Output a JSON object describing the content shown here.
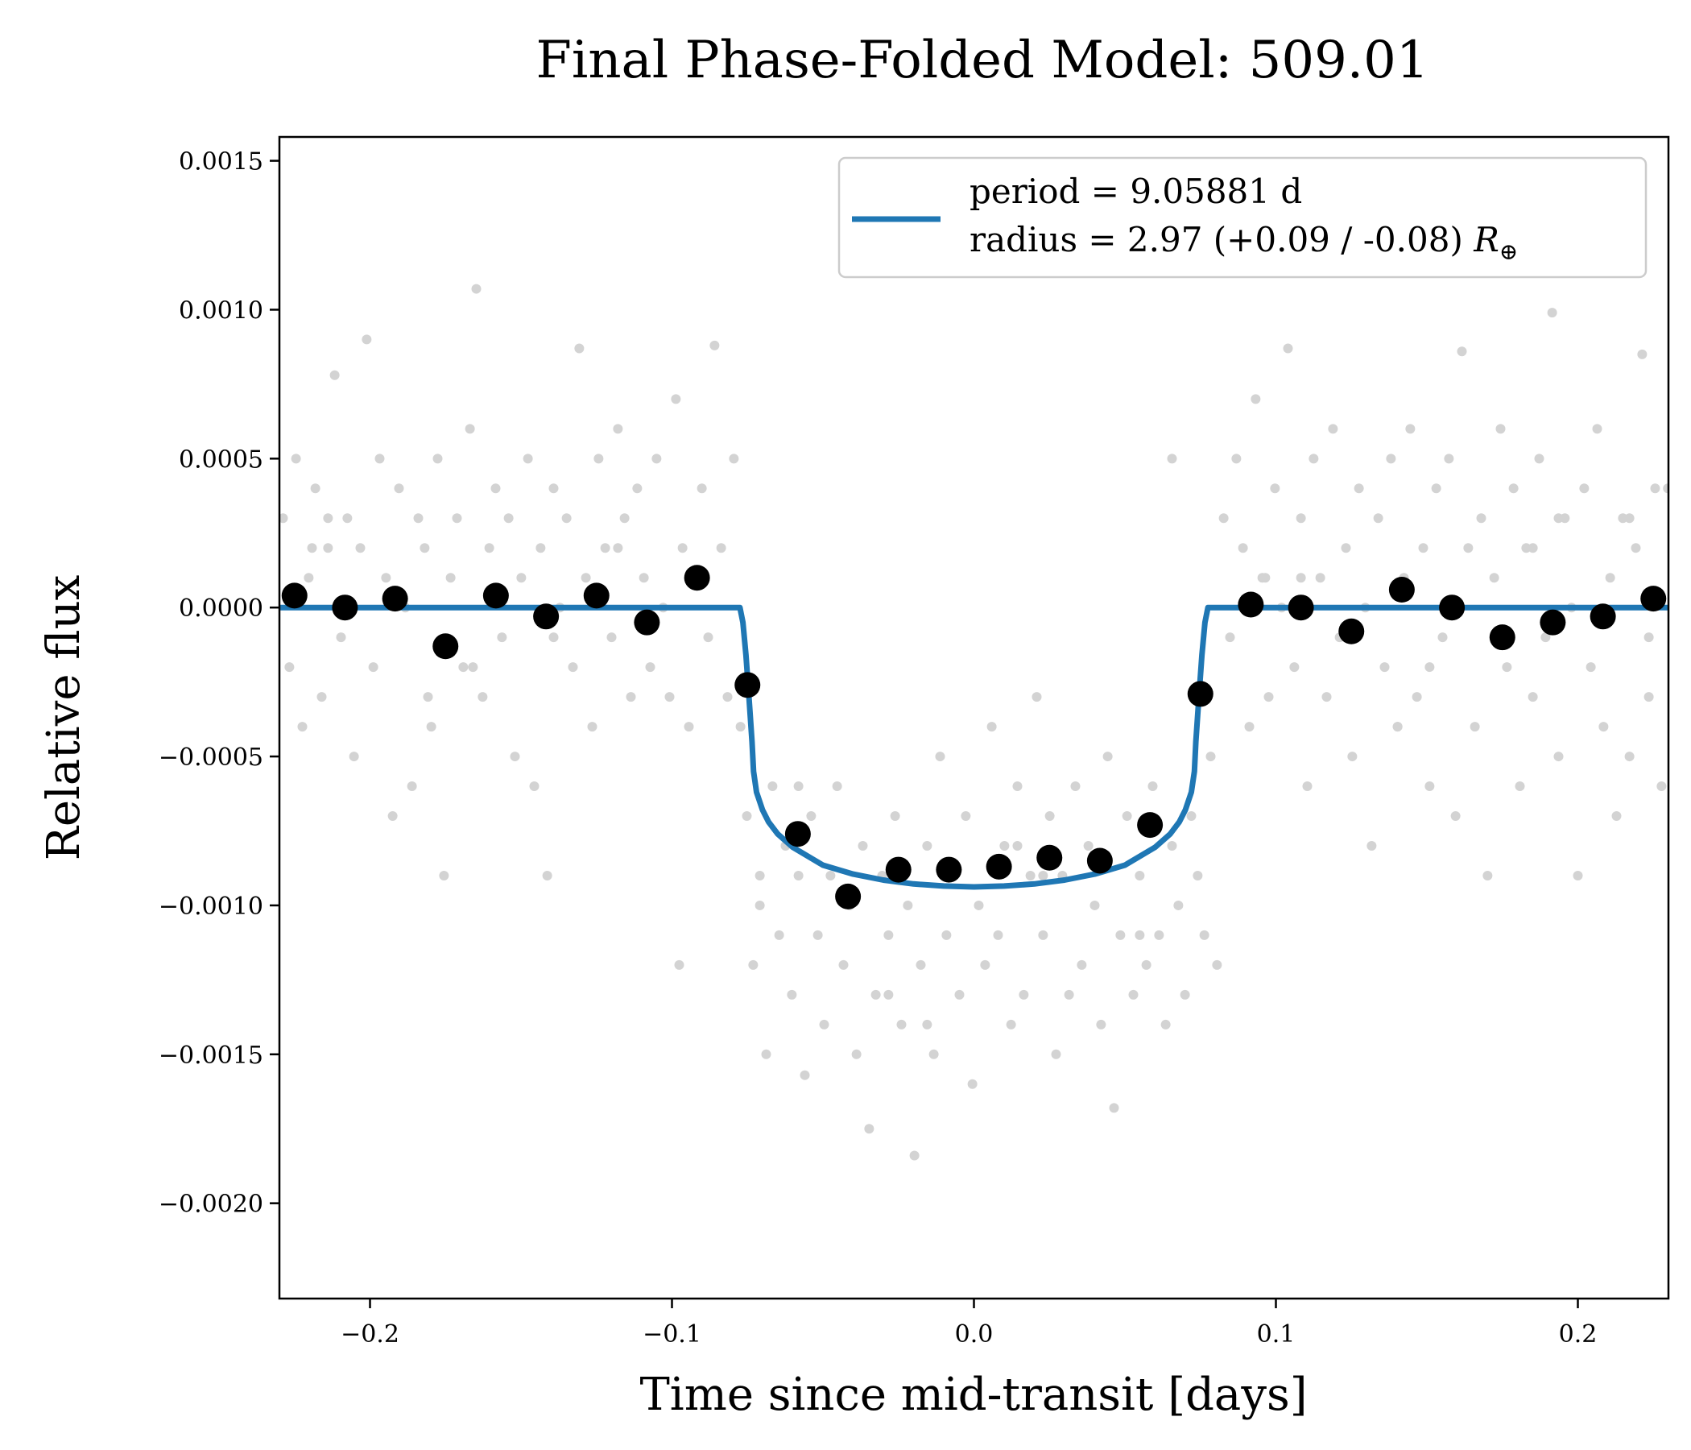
{
  "chart_data": {
    "type": "scatter",
    "title": "Final Phase-Folded Model: 509.01",
    "xlabel": "Time since mid-transit [days]",
    "ylabel": "Relative flux",
    "xlim": [
      -0.23,
      0.23
    ],
    "ylim": [
      -0.00232,
      0.00158
    ],
    "x_ticks": [
      -0.2,
      -0.1,
      0.0,
      0.1,
      0.2
    ],
    "x_tick_labels": [
      "−0.2",
      "−0.1",
      "0.0",
      "0.1",
      "0.2"
    ],
    "y_ticks": [
      0.0015,
      0.001,
      0.0005,
      0.0,
      -0.0005,
      -0.001,
      -0.0015,
      -0.002
    ],
    "y_tick_labels": [
      "0.0015",
      "0.0010",
      "0.0005",
      "0.0000",
      "−0.0005",
      "−0.0010",
      "−0.0015",
      "−0.0020"
    ],
    "grid": false,
    "legend": {
      "placement": "top-right",
      "entries": [
        {
          "line1": "period = 9.05881 d",
          "line2": "radius = 2.97 (+0.09 / -0.08) ",
          "symbol": "R",
          "subscript": "⊕"
        }
      ]
    },
    "colors": {
      "raw": "#d3d3d3",
      "binned": "#000000",
      "model": "#1f77b4"
    },
    "model": {
      "x": [
        -0.23,
        -0.0775,
        -0.0765,
        -0.0755,
        -0.0745,
        -0.0735,
        -0.073,
        -0.072,
        -0.07,
        -0.068,
        -0.065,
        -0.06,
        -0.05,
        -0.04,
        -0.03,
        -0.02,
        -0.01,
        0.0,
        0.01,
        0.02,
        0.03,
        0.04,
        0.05,
        0.06,
        0.065,
        0.068,
        0.07,
        0.072,
        0.073,
        0.0735,
        0.0745,
        0.0755,
        0.0765,
        0.0775,
        0.23
      ],
      "y": [
        0.0,
        0.0,
        -5e-05,
        -0.00016,
        -0.0003,
        -0.00045,
        -0.00055,
        -0.00062,
        -0.00068,
        -0.00072,
        -0.00076,
        -0.000805,
        -0.000865,
        -0.000895,
        -0.000915,
        -0.000928,
        -0.000935,
        -0.000938,
        -0.000935,
        -0.000928,
        -0.000915,
        -0.000895,
        -0.000865,
        -0.000805,
        -0.00076,
        -0.00072,
        -0.00068,
        -0.00062,
        -0.00055,
        -0.00045,
        -0.0003,
        -0.00016,
        -5e-05,
        0.0,
        0.0
      ]
    },
    "binned": {
      "x": [
        -0.225,
        -0.2083,
        -0.1917,
        -0.175,
        -0.1583,
        -0.1417,
        -0.125,
        -0.1083,
        -0.0917,
        -0.075,
        -0.0583,
        -0.0417,
        -0.025,
        -0.0083,
        0.0083,
        0.025,
        0.0417,
        0.0583,
        0.075,
        0.0917,
        0.1083,
        0.125,
        0.1417,
        0.1583,
        0.175,
        0.1917,
        0.2083,
        0.225
      ],
      "y": [
        4e-05,
        0.0,
        3e-05,
        -0.00013,
        4e-05,
        -3e-05,
        4e-05,
        -5e-05,
        0.0001,
        -0.00026,
        -0.00076,
        -0.00097,
        -0.00088,
        -0.00088,
        -0.00087,
        -0.00084,
        -0.00085,
        -0.00073,
        -0.00029,
        1e-05,
        0.0,
        -8e-05,
        6e-05,
        0.0,
        -0.0001,
        -5e-05,
        -3e-05,
        3e-05
      ]
    },
    "raw": {
      "x": [
        -0.2288,
        -0.2267,
        -0.2245,
        -0.2224,
        -0.2203,
        -0.2181,
        -0.216,
        -0.2139,
        -0.2117,
        -0.2096,
        -0.2075,
        -0.2053,
        -0.2032,
        -0.2011,
        -0.1989,
        -0.1968,
        -0.1947,
        -0.1925,
        -0.1904,
        -0.1883,
        -0.1861,
        -0.184,
        -0.1819,
        -0.1797,
        -0.1776,
        -0.1755,
        -0.1733,
        -0.1712,
        -0.1691,
        -0.1669,
        -0.1648,
        -0.1627,
        -0.1605,
        -0.1584,
        -0.1563,
        -0.1541,
        -0.152,
        -0.1499,
        -0.1477,
        -0.1456,
        -0.1435,
        -0.1413,
        -0.1392,
        -0.1371,
        -0.1349,
        -0.1328,
        -0.1307,
        -0.1285,
        -0.1264,
        -0.1243,
        -0.1221,
        -0.12,
        -0.1179,
        -0.1157,
        -0.1136,
        -0.1115,
        -0.1093,
        -0.1072,
        -0.1051,
        -0.1029,
        -0.1008,
        -0.0987,
        -0.0965,
        -0.0944,
        -0.0923,
        -0.0901,
        -0.088,
        -0.0859,
        -0.0837,
        -0.0816,
        -0.0795,
        -0.0773,
        -0.0752,
        -0.0731,
        -0.0709,
        -0.0688,
        -0.0667,
        -0.0645,
        -0.0624,
        -0.0603,
        -0.0581,
        -0.056,
        -0.0539,
        -0.0517,
        -0.0496,
        -0.0475,
        -0.0453,
        -0.0432,
        -0.0411,
        -0.0389,
        -0.0368,
        -0.0347,
        -0.0325,
        -0.0304,
        -0.0283,
        -0.0261,
        -0.024,
        -0.0219,
        -0.0197,
        -0.0176,
        -0.0155,
        -0.0133,
        -0.0112,
        -0.0091,
        -0.0069,
        -0.0048,
        -0.0027,
        -0.0005,
        0.0016,
        0.0037,
        0.0059,
        0.008,
        0.0101,
        0.0123,
        0.0144,
        0.0165,
        0.0187,
        0.0208,
        0.0229,
        0.0251,
        0.0272,
        0.0293,
        0.0315,
        0.0336,
        0.0357,
        0.0379,
        0.04,
        0.0421,
        0.0443,
        0.0464,
        0.0485,
        0.0507,
        0.0528,
        0.0549,
        0.0571,
        0.0592,
        0.0613,
        0.0635,
        0.0656,
        0.0677,
        0.0699,
        0.072,
        0.0741,
        0.0763,
        0.0784,
        0.0805,
        0.0827,
        0.0848,
        0.0869,
        0.0891,
        0.0912,
        0.0933,
        0.0955,
        0.0976,
        0.0997,
        0.1019,
        0.104,
        0.1061,
        0.1083,
        0.1104,
        0.1125,
        0.1147,
        0.1168,
        0.1189,
        0.1211,
        0.1232,
        0.1253,
        0.1275,
        0.1296,
        0.1317,
        0.1339,
        0.136,
        0.1381,
        0.1403,
        0.1424,
        0.1445,
        0.1467,
        0.1488,
        0.1509,
        0.1531,
        0.1552,
        0.1573,
        0.1595,
        0.1616,
        0.1637,
        0.1659,
        0.168,
        0.1701,
        0.1723,
        0.1744,
        0.1765,
        0.1787,
        0.1808,
        0.1829,
        0.1851,
        0.1872,
        0.1893,
        0.1915,
        0.1936,
        0.1957,
        0.1979,
        0.2,
        0.2021,
        0.2043,
        0.2064,
        0.2085,
        0.2107,
        0.2128,
        0.2149,
        0.2171,
        0.2192,
        0.2213,
        0.2235,
        0.2256,
        0.2277,
        0.2298,
        -0.2192,
        -0.1808,
        -0.1392,
        -0.0976,
        -0.0581,
        -0.0155,
        0.0229,
        0.0656,
        0.1083,
        0.1509,
        0.1936,
        0.2235,
        -0.2139,
        -0.1659,
        -0.1179,
        -0.0709,
        -0.0283,
        0.0144,
        0.0549,
        0.0965,
        0.1403,
        0.1851,
        0.2171
      ],
      "y": [
        0.0003,
        -0.0002,
        0.0005,
        -0.0004,
        0.0001,
        0.0004,
        -0.0003,
        0.0002,
        0.00078,
        -0.0001,
        0.0003,
        -0.0005,
        0.0002,
        0.0009,
        -0.0002,
        0.0005,
        0.0001,
        -0.0007,
        0.0004,
        0.0,
        -0.0006,
        0.0003,
        0.0002,
        -0.0004,
        0.0005,
        -0.0009,
        0.0001,
        0.0003,
        -0.0002,
        0.0006,
        0.00107,
        -0.0003,
        0.0002,
        0.0004,
        -0.0001,
        0.0003,
        -0.0005,
        0.0001,
        0.0005,
        -0.0006,
        0.0002,
        -0.0009,
        0.0004,
        0.0,
        0.0003,
        -0.0002,
        0.00087,
        0.0001,
        -0.0004,
        0.0005,
        0.0002,
        -0.0001,
        0.0006,
        0.0003,
        -0.0003,
        0.0004,
        0.0001,
        -0.0002,
        0.0005,
        0.0,
        -0.0003,
        0.0007,
        0.0002,
        -0.0004,
        0.0001,
        0.0004,
        -0.0001,
        0.00088,
        0.0002,
        -0.0003,
        0.0005,
        -0.0004,
        -0.0007,
        -0.0012,
        -0.0009,
        -0.0015,
        -0.0006,
        -0.0011,
        -0.0008,
        -0.0013,
        -0.0009,
        -0.00157,
        -0.0007,
        -0.0011,
        -0.0014,
        -0.0009,
        -0.0006,
        -0.0012,
        -0.001,
        -0.0015,
        -0.0008,
        -0.00175,
        -0.0013,
        -0.0009,
        -0.0011,
        -0.0007,
        -0.0014,
        -0.001,
        -0.00184,
        -0.0012,
        -0.0008,
        -0.0015,
        -0.0005,
        -0.0011,
        -0.0009,
        -0.0013,
        -0.0007,
        -0.0016,
        -0.001,
        -0.0012,
        -0.0004,
        -0.0011,
        -0.0008,
        -0.0014,
        -0.0006,
        -0.0013,
        -0.0009,
        -0.0003,
        -0.0011,
        -0.0007,
        -0.0015,
        -0.0009,
        -0.0013,
        -0.0006,
        -0.0012,
        -0.0008,
        -0.001,
        -0.0014,
        -0.0005,
        -0.00168,
        -0.0011,
        -0.0007,
        -0.0013,
        -0.0009,
        -0.0012,
        -0.0006,
        -0.0011,
        -0.0014,
        -0.0008,
        -0.001,
        -0.0013,
        -0.0007,
        -0.0009,
        -0.0011,
        -0.0005,
        -0.0012,
        0.0003,
        -0.0001,
        0.0005,
        0.0002,
        -0.0004,
        0.0007,
        0.0001,
        -0.0003,
        0.0004,
        0.0,
        0.00087,
        -0.0002,
        0.0003,
        -0.0006,
        0.0005,
        0.0001,
        -0.0003,
        0.0006,
        -0.0001,
        0.0002,
        -0.0005,
        0.0004,
        0.0,
        -0.0008,
        0.0003,
        -0.0002,
        0.0005,
        -0.0004,
        0.0001,
        0.0006,
        -0.0003,
        0.0002,
        -0.0006,
        0.0004,
        -0.0001,
        0.0005,
        -0.0007,
        0.00086,
        0.0002,
        -0.0004,
        0.0003,
        -0.0009,
        0.0001,
        0.0006,
        -0.0002,
        0.0004,
        -0.0006,
        0.0002,
        -0.0003,
        0.0005,
        -0.0001,
        0.00099,
        -0.0005,
        0.0003,
        0.0,
        -0.0009,
        0.0004,
        -0.0002,
        0.0006,
        -0.0004,
        0.0001,
        -0.0007,
        0.0003,
        -0.0005,
        0.0002,
        0.00085,
        -0.0003,
        0.0004,
        -0.0006,
        0.0004,
        0.0002,
        -0.0003,
        -0.0001,
        -0.0012,
        -0.0006,
        -0.0014,
        -0.0009,
        0.0005,
        0.0001,
        -0.0002,
        0.0003,
        -0.0001,
        0.0003,
        -0.0002,
        0.0002,
        -0.001,
        -0.0013,
        -0.0008,
        -0.0011,
        0.0001,
        -0.0004,
        0.0002,
        0.0003
      ]
    }
  }
}
